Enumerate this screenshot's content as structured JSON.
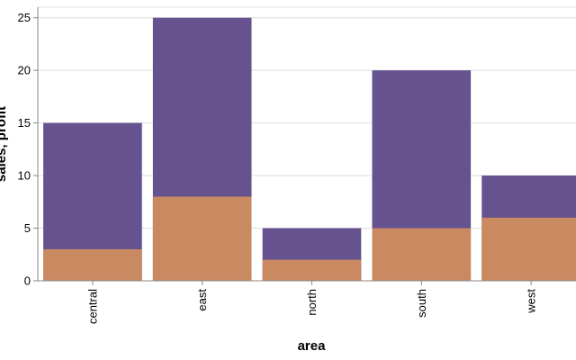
{
  "chart_data": {
    "type": "bar",
    "stacked": false,
    "overlay": true,
    "categories": [
      "central",
      "east",
      "north",
      "south",
      "west"
    ],
    "series": [
      {
        "name": "sales",
        "values": [
          15,
          25,
          5,
          20,
          10
        ],
        "color": "#65528f"
      },
      {
        "name": "profit",
        "values": [
          3,
          8,
          2,
          5,
          6
        ],
        "color": "#c98a62"
      }
    ],
    "xlabel": "area",
    "ylabel": "sales, profit",
    "ylim": [
      0,
      26
    ],
    "yticks": [
      0,
      5,
      10,
      15,
      20,
      25
    ],
    "grid": true,
    "legend": "none"
  }
}
